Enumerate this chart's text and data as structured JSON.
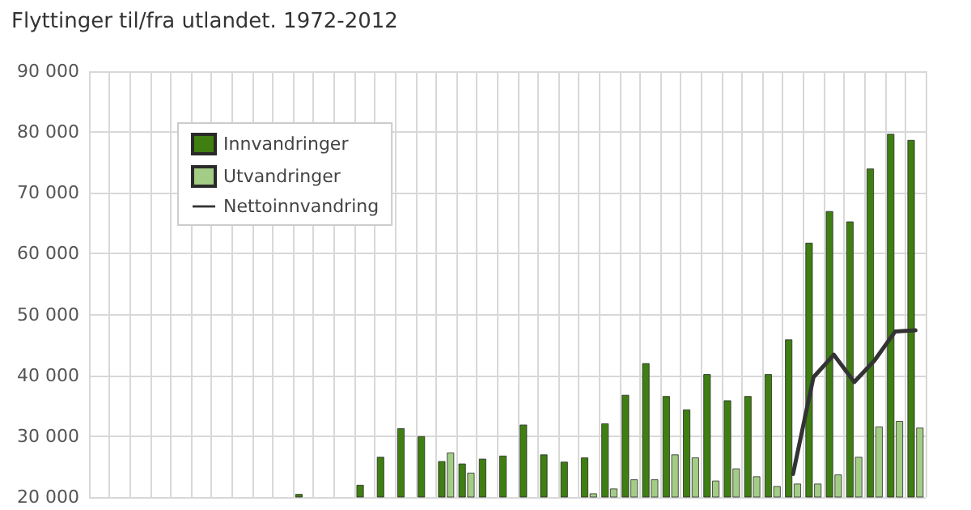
{
  "chart_data": {
    "type": "bar",
    "title": "Flyttinger til/fra utlandet. 1972-2012",
    "categories": [
      null,
      null,
      null,
      null,
      null,
      null,
      null,
      null,
      null,
      null,
      null,
      null,
      null,
      null,
      null,
      null,
      null,
      null,
      null,
      null,
      null,
      null,
      null,
      null,
      null,
      null,
      null,
      null,
      null,
      null,
      null,
      null,
      null,
      null,
      null,
      null,
      null,
      null,
      null,
      null,
      null
    ],
    "series": [
      {
        "name": "Innvandringer",
        "color": "#3f7f12",
        "values": [
          null,
          null,
          null,
          null,
          null,
          null,
          null,
          null,
          null,
          null,
          20500,
          null,
          null,
          22000,
          26600,
          31300,
          30000,
          25900,
          25500,
          26300,
          26800,
          31900,
          27000,
          25800,
          26500,
          32100,
          36800,
          42000,
          36600,
          34400,
          40200,
          35900,
          36600,
          40200,
          45900,
          61800,
          67000,
          65300,
          74000,
          79700,
          78700
        ]
      },
      {
        "name": "Utvandringer",
        "color": "#a3cc85",
        "values": [
          null,
          null,
          null,
          null,
          null,
          null,
          null,
          null,
          null,
          null,
          null,
          null,
          null,
          null,
          null,
          null,
          null,
          27300,
          24000,
          null,
          null,
          null,
          null,
          null,
          20600,
          21400,
          22900,
          22900,
          27000,
          26500,
          22700,
          24700,
          23400,
          21800,
          22200,
          22200,
          23700,
          26600,
          31600,
          32500,
          31400
        ]
      },
      {
        "name": "Nettoinnvandring",
        "type": "line",
        "color": "#333333",
        "values": [
          null,
          null,
          null,
          null,
          null,
          null,
          null,
          null,
          null,
          null,
          null,
          null,
          null,
          null,
          null,
          null,
          null,
          null,
          null,
          null,
          null,
          null,
          null,
          null,
          null,
          null,
          null,
          null,
          null,
          null,
          null,
          null,
          null,
          null,
          23800,
          39700,
          43400,
          38900,
          42500,
          47200,
          47400
        ]
      }
    ],
    "ylim": [
      20000,
      90000
    ],
    "yticks": [
      {
        "value": 20000,
        "label": "20 000"
      },
      {
        "value": 30000,
        "label": "30 000"
      },
      {
        "value": 40000,
        "label": "40 000"
      },
      {
        "value": 50000,
        "label": "50 000"
      },
      {
        "value": 60000,
        "label": "60 000"
      },
      {
        "value": 70000,
        "label": "70 000"
      },
      {
        "value": 80000,
        "label": "80 000"
      },
      {
        "value": 90000,
        "label": "90 000"
      }
    ],
    "grid": true,
    "legend": "top left",
    "marker": "none",
    "line_style": "solid"
  }
}
